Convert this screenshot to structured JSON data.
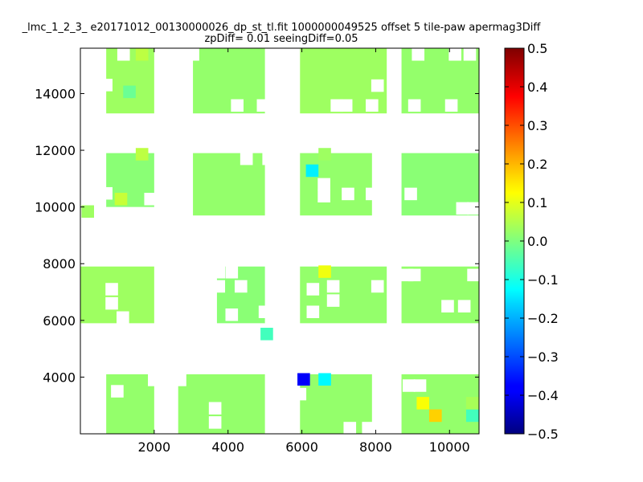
{
  "chart_data": {
    "type": "heatmap",
    "title": "_lmc_1_2_3_ e20171012_00130000026_dp_st_tl.fit 1000000049525 offset 5 tile-paw apermag3Diff",
    "subtitle": "zpDiff= 0.01 seeingDiff=0.05",
    "xlabel": "",
    "ylabel": "",
    "xlim": [
      0,
      10800
    ],
    "ylim": [
      2000,
      15600
    ],
    "x_ticks": [
      2000,
      4000,
      6000,
      8000,
      10000
    ],
    "y_ticks": [
      4000,
      6000,
      8000,
      10000,
      12000,
      14000
    ],
    "x_tick_labels": [
      "2000",
      "4000",
      "6000",
      "8000",
      "10000"
    ],
    "y_tick_labels": [
      "4000",
      "6000",
      "8000",
      "10000",
      "12000",
      "14000"
    ],
    "cell_size": [
      340,
      440
    ],
    "grid": false,
    "colormap": "jet",
    "colorbar": {
      "vmin": -0.5,
      "vmax": 0.5,
      "ticks": [
        0.5,
        0.4,
        0.3,
        0.2,
        0.1,
        0.0,
        -0.1,
        -0.2,
        -0.3,
        -0.4,
        -0.5
      ],
      "tick_labels": [
        "0.5",
        "0.4",
        "0.3",
        "0.2",
        "0.1",
        "0.0",
        "−0.1",
        "−0.2",
        "−0.3",
        "−0.4",
        "−0.5"
      ]
    },
    "blocks": [
      {
        "x": [
          700,
          2000
        ],
        "y": [
          13300,
          15600
        ],
        "value": 0.03
      },
      {
        "x": [
          3050,
          5000
        ],
        "y": [
          13300,
          15600
        ],
        "value": 0.02
      },
      {
        "x": [
          5950,
          8300
        ],
        "y": [
          13300,
          15600
        ],
        "value": 0.03
      },
      {
        "x": [
          8700,
          10800
        ],
        "y": [
          13300,
          15600
        ],
        "value": 0.02
      },
      {
        "x": [
          700,
          2000
        ],
        "y": [
          10000,
          11900
        ],
        "value": 0.01
      },
      {
        "x": [
          3050,
          5000
        ],
        "y": [
          9700,
          11900
        ],
        "value": 0.02
      },
      {
        "x": [
          5950,
          7900
        ],
        "y": [
          9700,
          11900
        ],
        "value": 0.02
      },
      {
        "x": [
          8700,
          10800
        ],
        "y": [
          9700,
          11900
        ],
        "value": 0.01
      },
      {
        "x": [
          0,
          2000
        ],
        "y": [
          5900,
          7900
        ],
        "value": 0.03
      },
      {
        "x": [
          3700,
          5000
        ],
        "y": [
          5900,
          7900
        ],
        "value": 0.01
      },
      {
        "x": [
          5950,
          8300
        ],
        "y": [
          5900,
          7900
        ],
        "value": 0.02
      },
      {
        "x": [
          8700,
          10800
        ],
        "y": [
          5900,
          7900
        ],
        "value": 0.02
      },
      {
        "x": [
          700,
          2000
        ],
        "y": [
          2000,
          4100
        ],
        "value": 0.02
      },
      {
        "x": [
          2650,
          5000
        ],
        "y": [
          2000,
          4100
        ],
        "value": 0.02
      },
      {
        "x": [
          5950,
          7900
        ],
        "y": [
          2000,
          4100
        ],
        "value": 0.02
      },
      {
        "x": [
          8700,
          10800
        ],
        "y": [
          2000,
          4100
        ],
        "value": 0.02
      }
    ],
    "cells": [
      {
        "x": 1670,
        "y": 15380,
        "value": 0.06
      },
      {
        "x": 1330,
        "y": 14060,
        "value": -0.02
      },
      {
        "x": 1670,
        "y": 11860,
        "value": 0.06
      },
      {
        "x": 1100,
        "y": 10280,
        "value": 0.07
      },
      {
        "x": 200,
        "y": 9840,
        "value": 0.03
      },
      {
        "x": 6280,
        "y": 11280,
        "value": -0.14
      },
      {
        "x": 6620,
        "y": 11860,
        "value": 0.03
      },
      {
        "x": 5050,
        "y": 5520,
        "value": -0.06
      },
      {
        "x": 6620,
        "y": 7720,
        "value": 0.11
      },
      {
        "x": 6050,
        "y": 3920,
        "value": -0.38
      },
      {
        "x": 6620,
        "y": 3920,
        "value": -0.13
      },
      {
        "x": 9280,
        "y": 3080,
        "value": 0.12
      },
      {
        "x": 9620,
        "y": 2640,
        "value": 0.17
      },
      {
        "x": 10620,
        "y": 2640,
        "value": -0.06
      },
      {
        "x": 10620,
        "y": 3080,
        "value": 0.04
      }
    ],
    "holes": [
      {
        "x": 1170,
        "y": 15380
      },
      {
        "x": 700,
        "y": 14300
      },
      {
        "x": 3050,
        "y": 15380
      },
      {
        "x": 4250,
        "y": 13580
      },
      {
        "x": 4950,
        "y": 13580
      },
      {
        "x": 6950,
        "y": 13580
      },
      {
        "x": 7200,
        "y": 13580
      },
      {
        "x": 7900,
        "y": 13580
      },
      {
        "x": 8050,
        "y": 14280
      },
      {
        "x": 9050,
        "y": 13580
      },
      {
        "x": 10050,
        "y": 13580
      },
      {
        "x": 9150,
        "y": 15380
      },
      {
        "x": 10150,
        "y": 15380
      },
      {
        "x": 10550,
        "y": 15380
      },
      {
        "x": 700,
        "y": 10480
      },
      {
        "x": 1900,
        "y": 10280
      },
      {
        "x": 4500,
        "y": 11700
      },
      {
        "x": 5100,
        "y": 11700
      },
      {
        "x": 6600,
        "y": 10800
      },
      {
        "x": 6600,
        "y": 10380
      },
      {
        "x": 7250,
        "y": 10460
      },
      {
        "x": 7900,
        "y": 10460
      },
      {
        "x": 8200,
        "y": 11700
      },
      {
        "x": 8950,
        "y": 10460
      },
      {
        "x": 10350,
        "y": 9950
      },
      {
        "x": 10650,
        "y": 9950
      },
      {
        "x": 850,
        "y": 7100
      },
      {
        "x": 850,
        "y": 6600
      },
      {
        "x": 1150,
        "y": 6100
      },
      {
        "x": 3750,
        "y": 7700
      },
      {
        "x": 4100,
        "y": 7700
      },
      {
        "x": 4350,
        "y": 7200
      },
      {
        "x": 3750,
        "y": 7200
      },
      {
        "x": 4100,
        "y": 6200
      },
      {
        "x": 5000,
        "y": 6300
      },
      {
        "x": 6850,
        "y": 7200
      },
      {
        "x": 6850,
        "y": 6700
      },
      {
        "x": 6300,
        "y": 6300
      },
      {
        "x": 6300,
        "y": 7100
      },
      {
        "x": 8050,
        "y": 7200
      },
      {
        "x": 8850,
        "y": 7600
      },
      {
        "x": 9050,
        "y": 7600
      },
      {
        "x": 9950,
        "y": 6500
      },
      {
        "x": 10400,
        "y": 6500
      },
      {
        "x": 10650,
        "y": 7600
      },
      {
        "x": 1000,
        "y": 3500
      },
      {
        "x": 2000,
        "y": 3900
      },
      {
        "x": 2700,
        "y": 3900
      },
      {
        "x": 3650,
        "y": 2900
      },
      {
        "x": 3650,
        "y": 2400
      },
      {
        "x": 5950,
        "y": 3400
      },
      {
        "x": 7300,
        "y": 2200
      },
      {
        "x": 7800,
        "y": 2200
      },
      {
        "x": 8900,
        "y": 3700
      },
      {
        "x": 9200,
        "y": 3700
      }
    ]
  }
}
